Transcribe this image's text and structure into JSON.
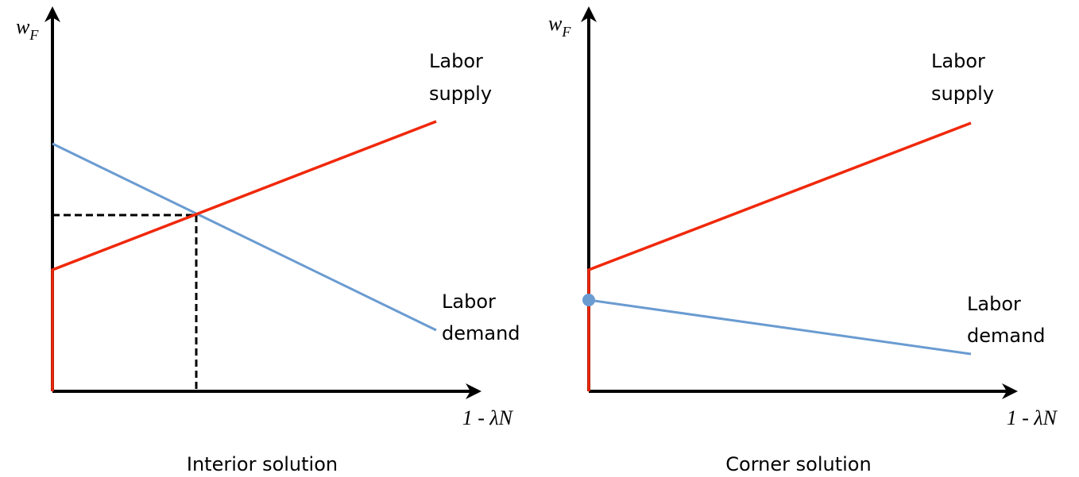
{
  "panels": [
    {
      "y_label": "w",
      "y_label_sub": "F",
      "x_label": "1 - λN",
      "supply_label": [
        "Labor",
        "supply"
      ],
      "demand_label": [
        "Labor",
        "demand"
      ],
      "caption": "Interior solution"
    },
    {
      "y_label": "w",
      "y_label_sub": "F",
      "x_label": "1 - λN",
      "supply_label": [
        "Labor",
        "supply"
      ],
      "demand_label": [
        "Labor",
        "demand"
      ],
      "caption": "Corner solution"
    }
  ]
}
